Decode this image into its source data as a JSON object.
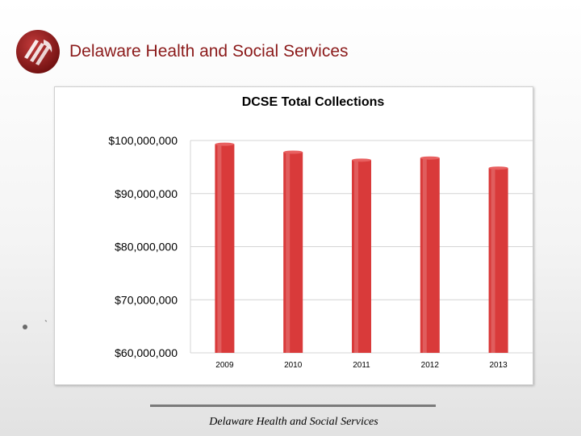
{
  "header": {
    "organization": "Delaware Health and Social Services",
    "logo_icon": "dhss-logo-icon",
    "brand_color": "#8b1a1a"
  },
  "body": {
    "bullet_icon": "bullet-icon",
    "stray_mark": "`"
  },
  "footer": {
    "text": "Delaware Health and Social Services"
  },
  "chart_data": {
    "type": "bar",
    "title": "DCSE Total Collections",
    "categories": [
      "2009",
      "2010",
      "2011",
      "2012",
      "2013"
    ],
    "values": [
      99300000,
      97800000,
      96300000,
      96700000,
      94800000
    ],
    "ylim": [
      60000000,
      100000000
    ],
    "yticks": [
      60000000,
      70000000,
      80000000,
      90000000,
      100000000
    ],
    "ytick_labels": [
      "$60,000,000",
      "$70,000,000",
      "$80,000,000",
      "$90,000,000",
      "$100,000,000"
    ],
    "grid": true,
    "legend": "none",
    "bar_color": "#d93a3a"
  }
}
